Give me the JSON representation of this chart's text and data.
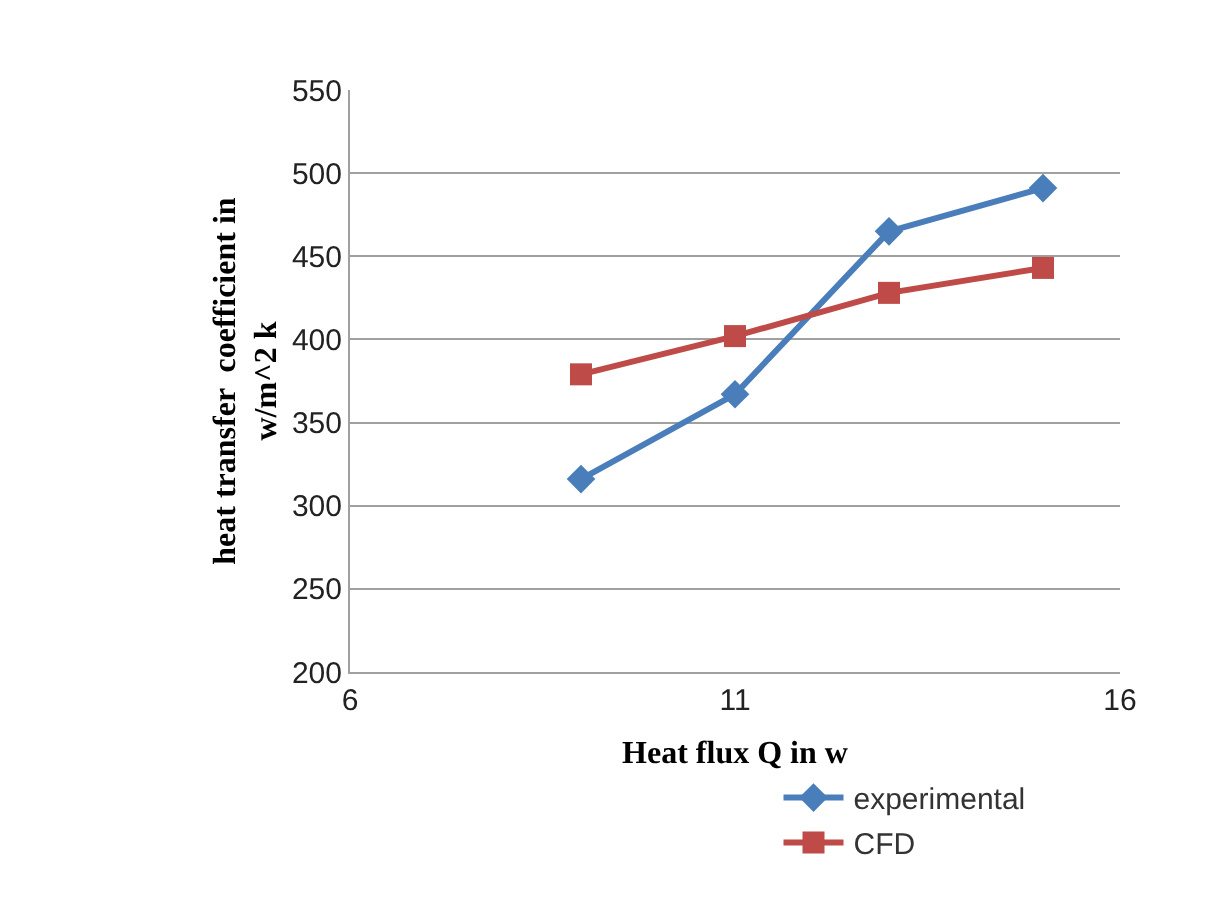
{
  "chart_data": {
    "type": "line",
    "xlabel": "Heat flux Q in w",
    "ylabel": "heat transfer  coefficient in w/m^2 k",
    "x": [
      9,
      11,
      13,
      15
    ],
    "series": [
      {
        "name": "experimental",
        "color": "#4a7ebb",
        "marker": "diamond",
        "values": [
          316,
          367,
          465,
          491
        ]
      },
      {
        "name": "CFD",
        "color": "#be4b48",
        "marker": "square",
        "values": [
          379,
          402,
          428,
          443
        ]
      }
    ],
    "xlim": [
      6,
      16
    ],
    "xticks": [
      6,
      11,
      16
    ],
    "ylim": [
      200,
      550
    ],
    "yticks": [
      200,
      250,
      300,
      350,
      400,
      450,
      500,
      550
    ],
    "grid": "y",
    "legend": "bottom right",
    "line_style": "solid"
  }
}
